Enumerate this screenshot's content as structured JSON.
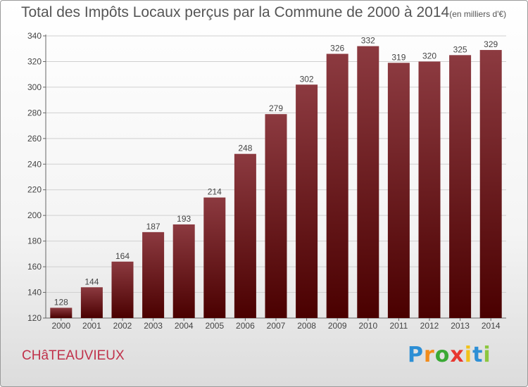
{
  "title": "Total des Impôts Locaux perçus par la Commune de 2000 à 2014",
  "title_unit": "(en milliers d'€)",
  "commune": "CHâTEAUVIEUX",
  "brand": {
    "letters": [
      "P",
      "r",
      "o",
      "x",
      "i",
      "t",
      "i"
    ],
    "colors": [
      "#2d8fd5",
      "#f28c1b",
      "#3aa935",
      "#e8372f",
      "#f2c21b",
      "#2d8fd5",
      "#8cc63f"
    ]
  },
  "colors": {
    "bar_top": "#8c3a40",
    "bar_bottom": "#4a0000",
    "grid": "#d0d0d0"
  },
  "chart_data": {
    "type": "bar",
    "categories": [
      "2000",
      "2001",
      "2002",
      "2003",
      "2004",
      "2005",
      "2006",
      "2007",
      "2008",
      "2009",
      "2010",
      "2011",
      "2012",
      "2013",
      "2014"
    ],
    "values": [
      128,
      144,
      164,
      187,
      193,
      214,
      248,
      279,
      302,
      326,
      332,
      319,
      320,
      325,
      329
    ],
    "yticks": [
      120,
      140,
      160,
      180,
      200,
      220,
      240,
      260,
      280,
      300,
      320,
      340
    ],
    "ylim": [
      120,
      340
    ],
    "grid": true,
    "title": "Total des Impôts Locaux perçus par la Commune de 2000 à 2014",
    "xlabel": "",
    "ylabel": ""
  }
}
